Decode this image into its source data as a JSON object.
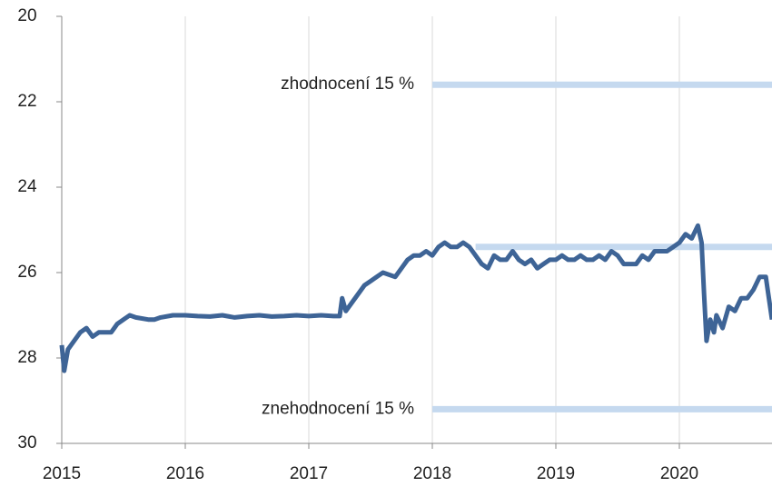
{
  "chart_data": {
    "type": "line",
    "xlim": [
      2015,
      2020.75
    ],
    "xticks": [
      2015,
      2016,
      2017,
      2018,
      2019,
      2020
    ],
    "ylim": [
      20,
      30
    ],
    "yticks": [
      20,
      22,
      24,
      26,
      28,
      30
    ],
    "y_inverted": true,
    "grid": "x",
    "series": [
      {
        "color": "#3e6496",
        "x": [
          2015.0,
          2015.02,
          2015.05,
          2015.1,
          2015.15,
          2015.2,
          2015.25,
          2015.3,
          2015.35,
          2015.4,
          2015.45,
          2015.5,
          2015.55,
          2015.6,
          2015.7,
          2015.75,
          2015.8,
          2015.9,
          2016.0,
          2016.1,
          2016.2,
          2016.3,
          2016.4,
          2016.5,
          2016.6,
          2016.7,
          2016.8,
          2016.9,
          2017.0,
          2017.1,
          2017.2,
          2017.25,
          2017.27,
          2017.3,
          2017.35,
          2017.4,
          2017.45,
          2017.5,
          2017.55,
          2017.6,
          2017.65,
          2017.7,
          2017.75,
          2017.8,
          2017.85,
          2017.9,
          2017.95,
          2018.0,
          2018.05,
          2018.1,
          2018.15,
          2018.2,
          2018.25,
          2018.3,
          2018.35,
          2018.4,
          2018.45,
          2018.5,
          2018.55,
          2018.6,
          2018.65,
          2018.7,
          2018.75,
          2018.8,
          2018.85,
          2018.9,
          2018.95,
          2019.0,
          2019.05,
          2019.1,
          2019.15,
          2019.2,
          2019.25,
          2019.3,
          2019.35,
          2019.4,
          2019.45,
          2019.5,
          2019.55,
          2019.6,
          2019.65,
          2019.7,
          2019.75,
          2019.8,
          2019.85,
          2019.9,
          2019.95,
          2020.0,
          2020.05,
          2020.1,
          2020.15,
          2020.18,
          2020.2,
          2020.22,
          2020.25,
          2020.28,
          2020.3,
          2020.35,
          2020.4,
          2020.45,
          2020.5,
          2020.55,
          2020.6,
          2020.65,
          2020.7,
          2020.72,
          2020.75
        ],
        "values": [
          27.7,
          28.3,
          27.8,
          27.6,
          27.4,
          27.3,
          27.5,
          27.4,
          27.4,
          27.4,
          27.2,
          27.1,
          27.0,
          27.05,
          27.1,
          27.1,
          27.05,
          27.0,
          27.0,
          27.02,
          27.03,
          27.0,
          27.05,
          27.02,
          27.0,
          27.03,
          27.02,
          27.0,
          27.02,
          27.0,
          27.02,
          27.02,
          26.6,
          26.9,
          26.7,
          26.5,
          26.3,
          26.2,
          26.1,
          26.0,
          26.05,
          26.1,
          25.9,
          25.7,
          25.6,
          25.6,
          25.5,
          25.6,
          25.4,
          25.3,
          25.4,
          25.4,
          25.3,
          25.4,
          25.6,
          25.8,
          25.9,
          25.6,
          25.7,
          25.7,
          25.5,
          25.7,
          25.8,
          25.7,
          25.9,
          25.8,
          25.7,
          25.7,
          25.6,
          25.7,
          25.7,
          25.6,
          25.7,
          25.7,
          25.6,
          25.7,
          25.5,
          25.6,
          25.8,
          25.8,
          25.8,
          25.6,
          25.7,
          25.5,
          25.5,
          25.5,
          25.4,
          25.3,
          25.1,
          25.2,
          24.9,
          25.3,
          26.5,
          27.6,
          27.1,
          27.4,
          27.0,
          27.3,
          26.8,
          26.9,
          26.6,
          26.6,
          26.4,
          26.1,
          26.1,
          26.5,
          27.1
        ]
      }
    ],
    "reference_lines": [
      {
        "value": 21.6,
        "start": 2018,
        "label": "zhodnocení  15 %",
        "color": "#c5d9ef"
      },
      {
        "value": 25.4,
        "start": 2018.35,
        "color": "#c5d9ef"
      },
      {
        "value": 29.2,
        "start": 2018,
        "label": "znehodnocení 15 %",
        "color": "#c5d9ef"
      }
    ]
  }
}
